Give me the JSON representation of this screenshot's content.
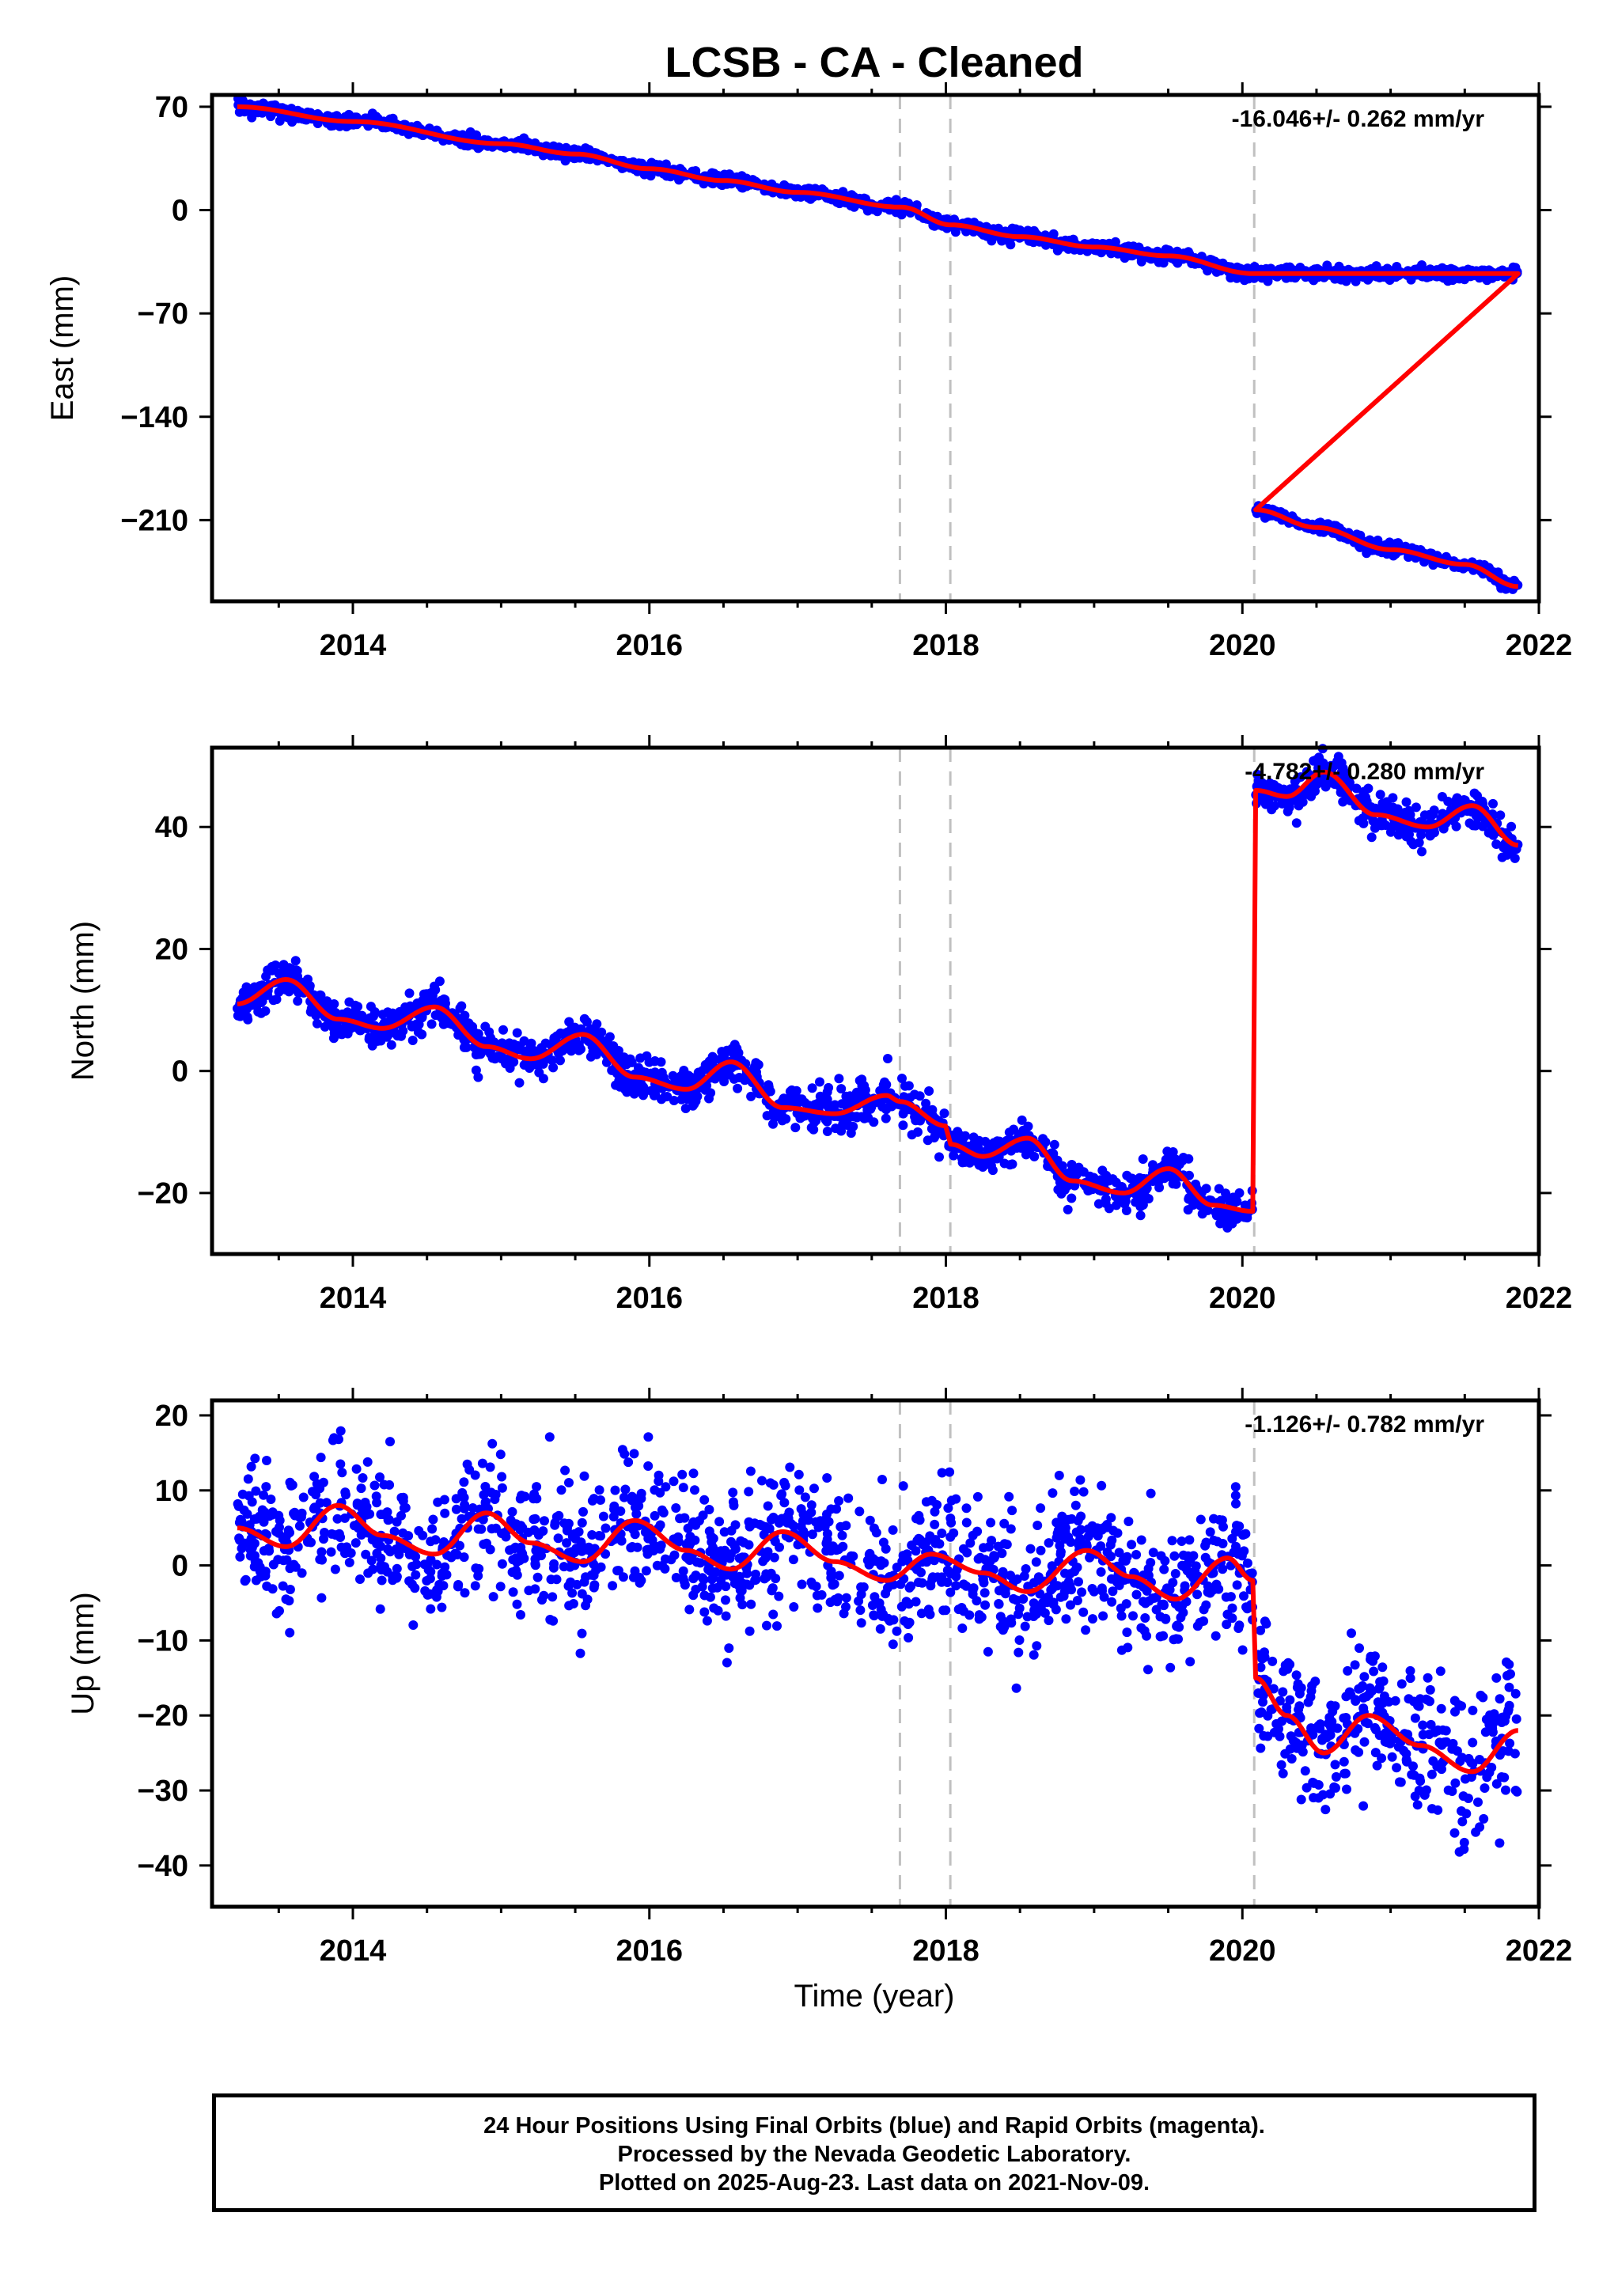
{
  "title": "LCSB  - CA - Cleaned",
  "x_axis_label": "Time (year)",
  "footer": {
    "line1": "24 Hour Positions Using Final Orbits (blue) and Rapid Orbits (magenta).",
    "line2": "Processed by the Nevada Geodetic Laboratory.",
    "line3": "Plotted on 2025-Aug-23. Last data on 2021-Nov-09."
  },
  "colors": {
    "points": "#0000ff",
    "fit": "#ff0000",
    "steps": "#c0c0c0",
    "frame": "#000000"
  },
  "chart_data": [
    {
      "type": "scatter",
      "title": "LCSB  - CA - Cleaned",
      "ylabel": "East (mm)",
      "xlim": [
        2013.05,
        2022.0
      ],
      "ylim": [
        -265,
        78
      ],
      "x_ticks": [
        "2014",
        "2016",
        "2018",
        "2020",
        "2022"
      ],
      "y_ticks": [
        "70",
        "0",
        "−70",
        "−140",
        "−210"
      ],
      "y_tick_values": [
        70,
        0,
        -70,
        -140,
        -210
      ],
      "rate_label": "-16.046+/- 0.262 mm/yr",
      "step_epochs": [
        2017.69,
        2018.03,
        2020.08
      ],
      "series": [
        {
          "kind": "daily_positions",
          "x_range": [
            2013.22,
            2021.86
          ],
          "noise_mm": 2.0,
          "x": [
            2013.22,
            2014.0,
            2015.0,
            2015.5,
            2016.0,
            2016.5,
            2017.0,
            2017.7,
            2018.03,
            2018.5,
            2019.0,
            2019.5,
            2020.07
          ],
          "y": [
            70,
            60,
            45,
            38,
            28,
            20,
            12,
            2,
            -10,
            -18,
            -25,
            -31,
            -43
          ]
        },
        {
          "kind": "daily_positions",
          "x_range": [
            2020.09,
            2021.86
          ],
          "noise_mm": 2.0,
          "x": [
            2020.09,
            2020.5,
            2021.0,
            2021.5,
            2021.86
          ],
          "y": [
            -203,
            -215,
            -230,
            -240,
            -255
          ]
        },
        {
          "kind": "fit",
          "break_at": 2020.08
        }
      ]
    },
    {
      "type": "scatter",
      "ylabel": "North (mm)",
      "xlim": [
        2013.05,
        2022.0
      ],
      "ylim": [
        -30,
        53
      ],
      "x_ticks": [
        "2014",
        "2016",
        "2018",
        "2020",
        "2022"
      ],
      "y_ticks": [
        "40",
        "20",
        "0",
        "−20"
      ],
      "y_tick_values": [
        40,
        20,
        0,
        -20
      ],
      "rate_label": "-4.782+/- 0.280 mm/yr",
      "step_epochs": [
        2017.69,
        2018.03,
        2020.08
      ],
      "series": [
        {
          "kind": "daily_positions",
          "x_range": [
            2013.22,
            2020.07
          ],
          "noise_mm": 1.6,
          "x": [
            2013.22,
            2013.55,
            2013.9,
            2014.2,
            2014.55,
            2014.9,
            2015.2,
            2015.55,
            2015.9,
            2016.25,
            2016.55,
            2016.9,
            2017.25,
            2017.6,
            2017.69,
            2018.0,
            2018.03,
            2018.25,
            2018.55,
            2018.85,
            2019.2,
            2019.5,
            2019.8,
            2020.07
          ],
          "y": [
            11,
            15,
            8.5,
            7,
            10.5,
            4,
            2,
            6,
            -1,
            -3,
            1.5,
            -6,
            -7,
            -4,
            -5,
            -9,
            -12,
            -14,
            -11,
            -18,
            -20,
            -16,
            -22,
            -23
          ]
        },
        {
          "kind": "daily_positions",
          "x_range": [
            2020.09,
            2021.86
          ],
          "noise_mm": 1.6,
          "x": [
            2020.09,
            2020.3,
            2020.55,
            2020.9,
            2021.25,
            2021.55,
            2021.86
          ],
          "y": [
            46,
            45,
            49,
            42,
            40,
            43.5,
            37
          ]
        },
        {
          "kind": "fit",
          "break_at": 2020.08
        }
      ]
    },
    {
      "type": "scatter",
      "ylabel": "Up (mm)",
      "xaxis_label": "Time (year)",
      "xlim": [
        2013.05,
        2022.0
      ],
      "ylim": [
        -45.5,
        22
      ],
      "x_ticks": [
        "2014",
        "2016",
        "2018",
        "2020",
        "2022"
      ],
      "y_ticks": [
        "20",
        "10",
        "0",
        "−10",
        "−20",
        "−30",
        "−40"
      ],
      "y_tick_values": [
        20,
        10,
        0,
        -10,
        -20,
        -30,
        -40
      ],
      "rate_label": "-1.126+/- 0.782 mm/yr",
      "step_epochs": [
        2017.69,
        2018.03,
        2020.08
      ],
      "series": [
        {
          "kind": "daily_positions",
          "x_range": [
            2013.22,
            2020.07
          ],
          "noise_mm": 4.5,
          "x": [
            2013.22,
            2013.55,
            2013.9,
            2014.2,
            2014.55,
            2014.9,
            2015.2,
            2015.55,
            2015.9,
            2016.25,
            2016.55,
            2016.9,
            2017.25,
            2017.6,
            2017.9,
            2018.25,
            2018.55,
            2018.95,
            2019.25,
            2019.55,
            2019.9,
            2020.07
          ],
          "y": [
            5,
            2.5,
            8,
            4,
            1.5,
            7,
            3,
            0.5,
            6,
            2,
            -0.5,
            4.5,
            0.5,
            -2,
            1.5,
            -1,
            -3.5,
            2,
            -1.5,
            -4.5,
            1,
            -2
          ]
        },
        {
          "kind": "daily_positions",
          "x_range": [
            2020.09,
            2021.86
          ],
          "noise_mm": 4.5,
          "x": [
            2020.09,
            2020.3,
            2020.55,
            2020.85,
            2021.2,
            2021.55,
            2021.86
          ],
          "y": [
            -15,
            -20,
            -25,
            -20,
            -24,
            -27.5,
            -22
          ]
        },
        {
          "kind": "fit",
          "break_at": 2020.08
        }
      ]
    }
  ]
}
